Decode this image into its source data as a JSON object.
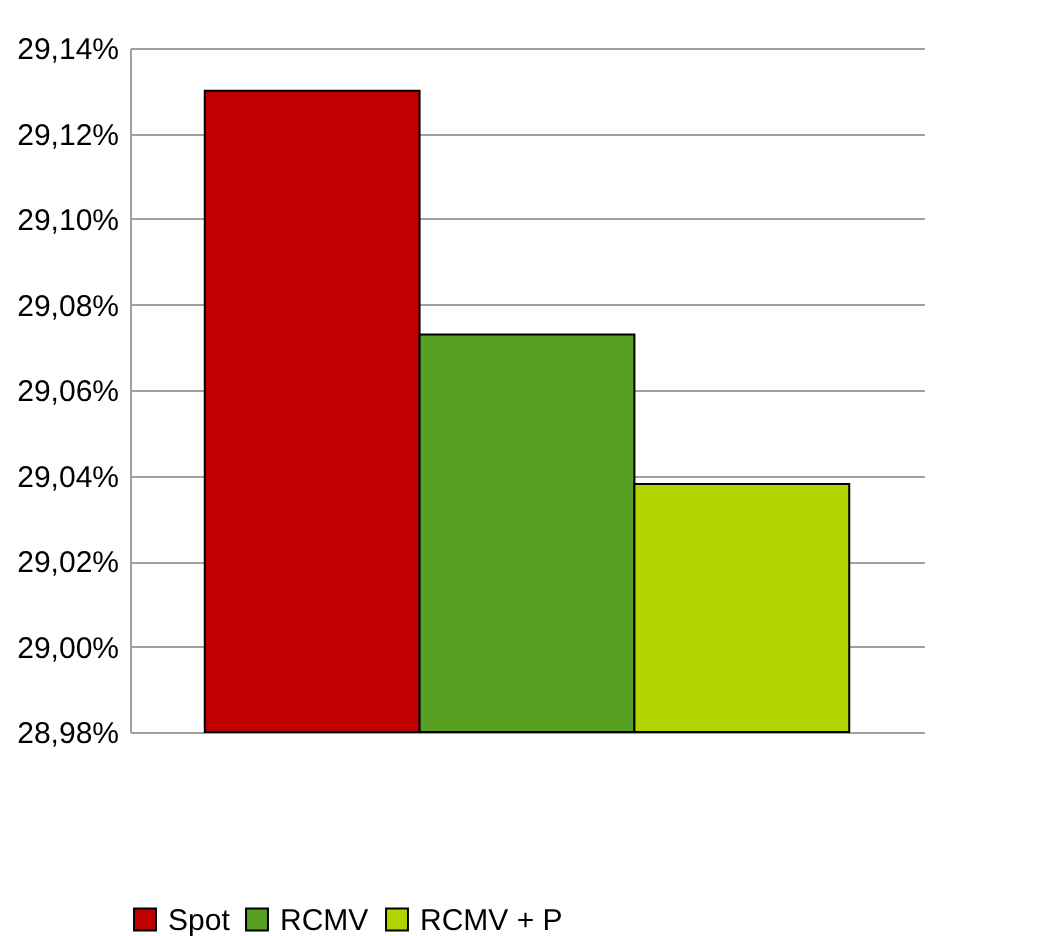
{
  "chart_data": {
    "type": "bar",
    "categories": [
      null
    ],
    "series": [
      {
        "name": "Spot",
        "color": "#c00000",
        "values": [
          29.13
        ]
      },
      {
        "name": "RCMV",
        "color": "#58a021",
        "values": [
          29.073
        ]
      },
      {
        "name": "RCMV + P",
        "color": "#b3d300",
        "values": [
          29.038
        ]
      }
    ],
    "ylim": [
      28.98,
      29.14
    ],
    "yticks": [
      {
        "value": 28.98,
        "label": "28,98%"
      },
      {
        "value": 29.0,
        "label": "29,00%"
      },
      {
        "value": 29.02,
        "label": "29,02%"
      },
      {
        "value": 29.04,
        "label": "29,04%"
      },
      {
        "value": 29.06,
        "label": "29,06%"
      },
      {
        "value": 29.08,
        "label": "29,08%"
      },
      {
        "value": 29.1,
        "label": "29,10%"
      },
      {
        "value": 29.12,
        "label": "29,12%"
      },
      {
        "value": 29.14,
        "label": "29,14%"
      }
    ],
    "grid": "y",
    "legend": "bottom"
  }
}
